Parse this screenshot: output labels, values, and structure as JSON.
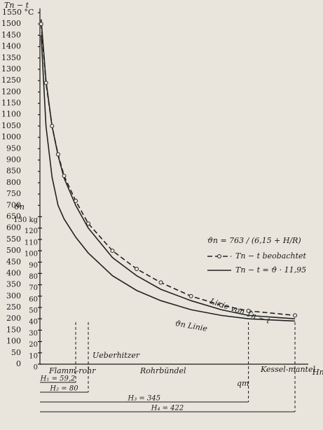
{
  "chart_data": {
    "type": "line",
    "y_title": "Tn − t",
    "y2_title": "ϑn",
    "x_title": "Hn",
    "xlim": [
      0,
      444
    ],
    "ylim": [
      0,
      1550
    ],
    "y2lim": [
      0,
      310
    ],
    "yticks": [
      0,
      50,
      100,
      150,
      200,
      250,
      300,
      350,
      400,
      450,
      500,
      550,
      600,
      650,
      700,
      750,
      800,
      850,
      900,
      950,
      1000,
      1050,
      1100,
      1150,
      1200,
      1250,
      1300,
      1350,
      1400,
      1450,
      1500,
      {
        "value": 1550,
        "label": "1550 °C"
      }
    ],
    "y2ticks": [
      0,
      10,
      20,
      30,
      40,
      50,
      60,
      70,
      80,
      90,
      100,
      110,
      120,
      {
        "value": 130,
        "label": "130 kg"
      }
    ],
    "x": [
      2,
      10,
      20,
      30,
      40,
      59.2,
      80,
      120,
      160,
      200,
      250,
      300,
      345,
      422
    ],
    "series": [
      {
        "name": "Tn − t = ϑ · 11,95",
        "color": "#222222",
        "style": "solid",
        "values": [
          1520,
          1250,
          1050,
          920,
          820,
          700,
          600,
          470,
          390,
          330,
          280,
          240,
          215,
          200
        ]
      },
      {
        "name": "Tn − t beobachtet",
        "color": "#222222",
        "style": "dashed",
        "values": [
          1500,
          1240,
          1050,
          925,
          830,
          720,
          620,
          500,
          420,
          360,
          300,
          260,
          235,
          215
        ]
      },
      {
        "name": "ϑn Linie",
        "color": "#222222",
        "style": "solid",
        "axis": "y2",
        "values": [
          290,
          210,
          165,
          140,
          128,
          112,
          98,
          78,
          65,
          56,
          48,
          43,
          40,
          38
        ]
      }
    ],
    "legend_formula": "ϑn = 763 / (6,15 + H/R)",
    "curve_label": "Linie von Tn − t",
    "regions": [
      "Flamm-rohr",
      "Ueberhitzer",
      "Rohrbündel",
      "Kessel-mantel"
    ],
    "unit_label": "qm",
    "markers": [
      {
        "label": "H₁ = 59,2",
        "value": 59.2
      },
      {
        "label": "H₂ = 80",
        "value": 80
      },
      {
        "label": "H₃ = 345",
        "value": 345
      },
      {
        "label": "H₄ = 422",
        "value": 422
      }
    ]
  }
}
